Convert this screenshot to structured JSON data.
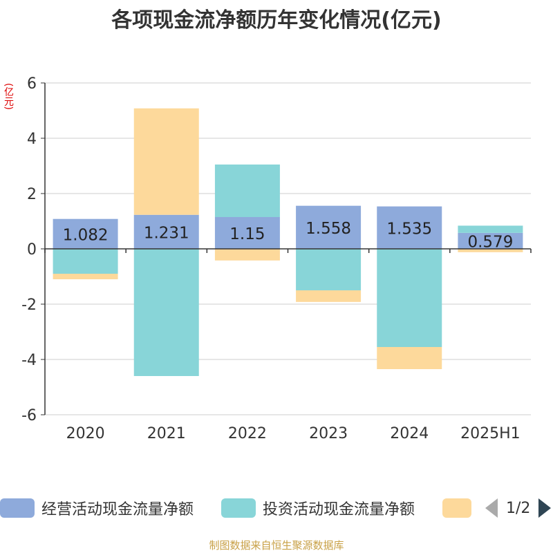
{
  "chart_data": {
    "type": "bar",
    "stacked": true,
    "title": "各项现金流净额历年变化情况(亿元)",
    "ylabel": "(亿元)",
    "categories": [
      "2020",
      "2021",
      "2022",
      "2023",
      "2024",
      "2025H1"
    ],
    "ylim": [
      -6,
      6
    ],
    "yticks": [
      -6,
      -4,
      -2,
      0,
      2,
      4,
      6
    ],
    "grid": true,
    "legend_position": "bottom",
    "series": [
      {
        "name": "经营活动现金流量净额",
        "color": "#8eaadb",
        "values": [
          1.082,
          1.231,
          1.15,
          1.558,
          1.535,
          0.579
        ],
        "show_labels": true
      },
      {
        "name": "投资活动现金流量净额",
        "color": "#88d5d8",
        "values": [
          -0.9,
          -4.6,
          1.9,
          -1.5,
          -3.55,
          0.26
        ],
        "show_labels": false
      },
      {
        "name": "",
        "color": "#fdd99b",
        "values": [
          -0.2,
          3.85,
          -0.42,
          -0.42,
          -0.8,
          -0.12
        ],
        "show_labels": false
      }
    ]
  },
  "legend": {
    "items": [
      {
        "label": "经营活动现金流量净额",
        "color": "#8eaadb"
      },
      {
        "label": "投资活动现金流量净额",
        "color": "#88d5d8"
      },
      {
        "label": "",
        "color": "#fdd99b"
      }
    ],
    "page": "1/2"
  },
  "source": "制图数据来自恒生聚源数据库"
}
